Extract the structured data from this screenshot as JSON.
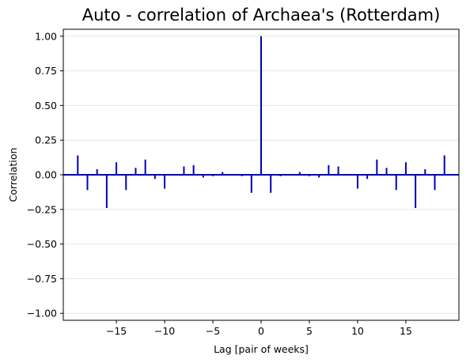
{
  "chart_data": {
    "type": "bar",
    "title": "Auto - correlation of Archaea's (Rotterdam)",
    "xlabel": "Lag [pair of weeks]",
    "ylabel": "Correlation",
    "xlim": [
      -20.5,
      20.5
    ],
    "ylim": [
      -1.05,
      1.05
    ],
    "xticks": [
      -15,
      -10,
      -5,
      0,
      5,
      10,
      15
    ],
    "xtick_labels": [
      "−15",
      "−10",
      "−5",
      "0",
      "5",
      "10",
      "15"
    ],
    "yticks": [
      1.0,
      0.75,
      0.5,
      0.25,
      0.0,
      -0.25,
      -0.5,
      -0.75,
      -1.0
    ],
    "ytick_labels": [
      "1.00",
      "0.75",
      "0.50",
      "0.25",
      "0.00",
      "−0.25",
      "−0.50",
      "−0.75",
      "−1.00"
    ],
    "grid": "horizontal",
    "color": "#0000bb",
    "lags": [
      -19,
      -18,
      -17,
      -16,
      -15,
      -14,
      -13,
      -12,
      -11,
      -10,
      -9,
      -8,
      -7,
      -6,
      -5,
      -4,
      -3,
      -2,
      -1,
      0,
      1,
      2,
      3,
      4,
      5,
      6,
      7,
      8,
      9,
      10,
      11,
      12,
      13,
      14,
      15,
      16,
      17,
      18,
      19
    ],
    "values": [
      0.14,
      -0.11,
      0.04,
      -0.24,
      0.09,
      -0.11,
      0.05,
      0.11,
      -0.03,
      -0.1,
      0.0,
      0.06,
      0.07,
      -0.02,
      -0.01,
      0.02,
      0.0,
      -0.01,
      -0.13,
      1.0,
      -0.13,
      -0.01,
      0.0,
      0.02,
      -0.01,
      -0.02,
      0.07,
      0.06,
      0.0,
      -0.1,
      -0.03,
      0.11,
      0.05,
      -0.11,
      0.09,
      -0.24,
      0.04,
      -0.11,
      0.14
    ]
  }
}
